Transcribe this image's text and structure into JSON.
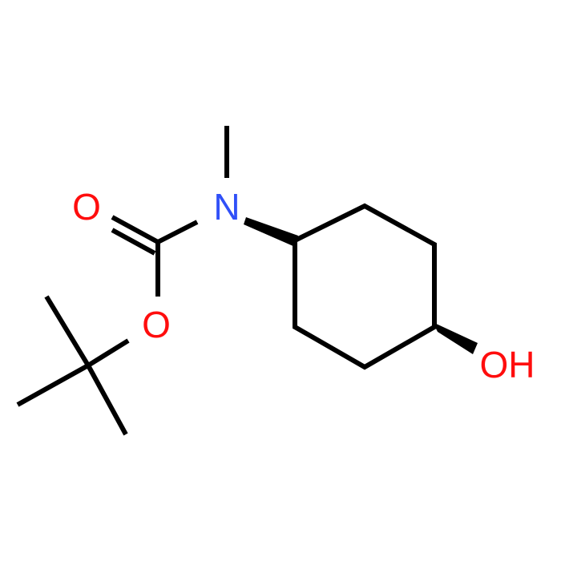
{
  "atoms": {
    "carbonyl_oxygen": "O",
    "nitrogen": "N",
    "ester_oxygen": "O",
    "hydroxyl": "OH"
  }
}
